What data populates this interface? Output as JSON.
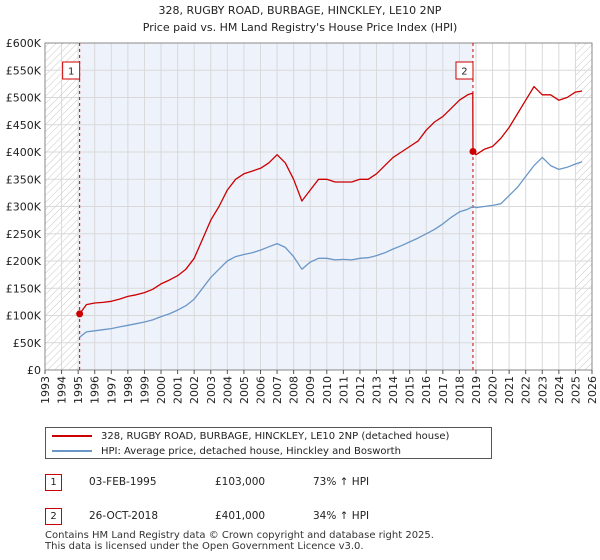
{
  "chart_data": {
    "type": "line",
    "title": "328, RUGBY ROAD, BURBAGE, HINCKLEY, LE10 2NP",
    "subtitle": "Price paid vs. HM Land Registry's House Price Index (HPI)",
    "xlim": [
      1993,
      2026
    ],
    "ylim": [
      0,
      600000
    ],
    "x_ticks": [
      "1993",
      "1994",
      "1995",
      "1996",
      "1997",
      "1998",
      "1999",
      "2000",
      "2001",
      "2002",
      "2003",
      "2004",
      "2005",
      "2006",
      "2007",
      "2008",
      "2009",
      "2010",
      "2011",
      "2012",
      "2013",
      "2014",
      "2015",
      "2016",
      "2017",
      "2018",
      "2019",
      "2020",
      "2021",
      "2022",
      "2023",
      "2024",
      "2025",
      "2026"
    ],
    "y_ticks": [
      {
        "value": 0,
        "label": "£0"
      },
      {
        "value": 50000,
        "label": "£50K"
      },
      {
        "value": 100000,
        "label": "£100K"
      },
      {
        "value": 150000,
        "label": "£150K"
      },
      {
        "value": 200000,
        "label": "£200K"
      },
      {
        "value": 250000,
        "label": "£250K"
      },
      {
        "value": 300000,
        "label": "£300K"
      },
      {
        "value": 350000,
        "label": "£350K"
      },
      {
        "value": 400000,
        "label": "£400K"
      },
      {
        "value": 450000,
        "label": "£450K"
      },
      {
        "value": 500000,
        "label": "£500K"
      },
      {
        "value": 550000,
        "label": "£550K"
      },
      {
        "value": 600000,
        "label": "£600K"
      }
    ],
    "shaded_range": [
      1995.09,
      2018.82
    ],
    "hatch_before": 1995.09,
    "hatch_after": 2025.0,
    "series": [
      {
        "name": "328, RUGBY ROAD, BURBAGE, HINCKLEY, LE10 2NP (detached house)",
        "color": "#cc0000",
        "x": [
          1995.09,
          1995.5,
          1996,
          1996.5,
          1997,
          1997.5,
          1998,
          1998.5,
          1999,
          1999.5,
          2000,
          2000.5,
          2001,
          2001.5,
          2002,
          2002.5,
          2003,
          2003.5,
          2004,
          2004.5,
          2005,
          2005.5,
          2006,
          2006.5,
          2007,
          2007.5,
          2008,
          2008.5,
          2009,
          2009.5,
          2010,
          2010.5,
          2011,
          2011.5,
          2012,
          2012.5,
          2013,
          2013.5,
          2014,
          2014.5,
          2015,
          2015.5,
          2016,
          2016.5,
          2017,
          2017.5,
          2018,
          2018.5,
          2018.81,
          2018.82,
          2019,
          2019.5,
          2020,
          2020.5,
          2021,
          2021.5,
          2022,
          2022.5,
          2023,
          2023.5,
          2024,
          2024.5,
          2025,
          2025.4
        ],
        "values": [
          103000,
          120000,
          123000,
          124000,
          126000,
          130000,
          135000,
          138000,
          142000,
          148000,
          158000,
          165000,
          173000,
          185000,
          205000,
          240000,
          275000,
          300000,
          330000,
          350000,
          360000,
          365000,
          370000,
          380000,
          395000,
          380000,
          350000,
          310000,
          330000,
          350000,
          350000,
          345000,
          345000,
          345000,
          350000,
          350000,
          360000,
          375000,
          390000,
          400000,
          410000,
          420000,
          440000,
          455000,
          465000,
          480000,
          495000,
          505000,
          508000,
          401000,
          395000,
          405000,
          410000,
          425000,
          445000,
          470000,
          495000,
          520000,
          505000,
          505000,
          495000,
          500000,
          510000,
          512000
        ]
      },
      {
        "name": "HPI: Average price, detached house, Hinckley and Bosworth",
        "color": "#6a97c8",
        "x": [
          1995.09,
          1995.5,
          1996,
          1996.5,
          1997,
          1997.5,
          1998,
          1998.5,
          1999,
          1999.5,
          2000,
          2000.5,
          2001,
          2001.5,
          2002,
          2002.5,
          2003,
          2003.5,
          2004,
          2004.5,
          2005,
          2005.5,
          2006,
          2006.5,
          2007,
          2007.5,
          2008,
          2008.5,
          2009,
          2009.5,
          2010,
          2010.5,
          2011,
          2011.5,
          2012,
          2012.5,
          2013,
          2013.5,
          2014,
          2014.5,
          2015,
          2015.5,
          2016,
          2016.5,
          2017,
          2017.5,
          2018,
          2018.5,
          2018.82,
          2019,
          2019.5,
          2020,
          2020.5,
          2021,
          2021.5,
          2022,
          2022.5,
          2023,
          2023.5,
          2024,
          2024.5,
          2025,
          2025.4
        ],
        "values": [
          60000,
          70000,
          72000,
          74000,
          76000,
          79000,
          82000,
          85000,
          88000,
          92000,
          98000,
          103000,
          110000,
          118000,
          130000,
          150000,
          170000,
          185000,
          200000,
          208000,
          212000,
          215000,
          220000,
          226000,
          232000,
          225000,
          208000,
          185000,
          198000,
          205000,
          205000,
          202000,
          203000,
          202000,
          205000,
          206000,
          210000,
          215000,
          222000,
          228000,
          235000,
          242000,
          250000,
          258000,
          268000,
          280000,
          290000,
          295000,
          300000,
          298000,
          300000,
          302000,
          305000,
          320000,
          335000,
          355000,
          375000,
          390000,
          375000,
          368000,
          372000,
          378000,
          382000
        ]
      }
    ],
    "annotations": [
      {
        "label": "1",
        "x": 1995.09,
        "value": 103000,
        "color": "#cc0000"
      },
      {
        "label": "2",
        "x": 2018.82,
        "value": 401000,
        "color": "#cc0000"
      }
    ]
  },
  "legend": {
    "items": [
      {
        "label": "328, RUGBY ROAD, BURBAGE, HINCKLEY, LE10 2NP (detached house)",
        "color": "#cc0000"
      },
      {
        "label": "HPI: Average price, detached house, Hinckley and Bosworth",
        "color": "#6a97c8"
      }
    ]
  },
  "transactions": [
    {
      "marker": "1",
      "date": "03-FEB-1995",
      "price": "£103,000",
      "hpi": "73% ↑ HPI"
    },
    {
      "marker": "2",
      "date": "26-OCT-2018",
      "price": "£401,000",
      "hpi": "34% ↑ HPI"
    }
  ],
  "footer": {
    "line1": "Contains HM Land Registry data © Crown copyright and database right 2025.",
    "line2": "This data is licensed under the Open Government Licence v3.0."
  }
}
